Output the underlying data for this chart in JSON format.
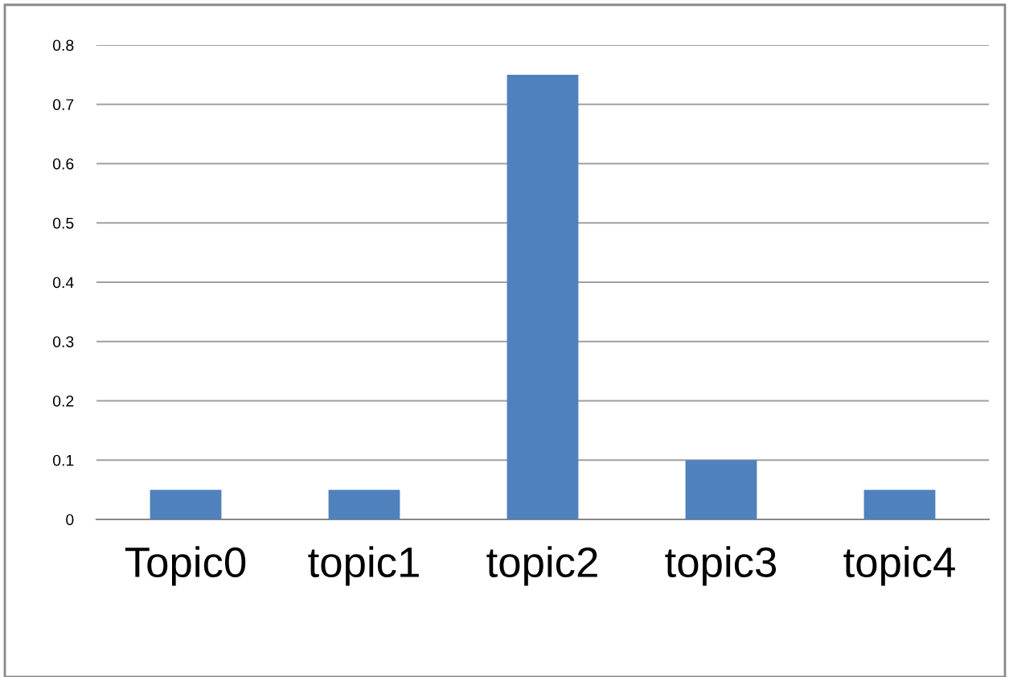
{
  "chart_data": {
    "type": "bar",
    "categories": [
      "Topic0",
      "topic1",
      "topic2",
      "topic3",
      "topic4"
    ],
    "values": [
      0.05,
      0.05,
      0.75,
      0.1,
      0.05
    ],
    "color": "#4f81bd",
    "ylim": [
      0,
      0.8
    ],
    "yticks": [
      0,
      0.1,
      0.2,
      0.3,
      0.4,
      0.5,
      0.6,
      0.7,
      0.8
    ],
    "grid": "y",
    "legend": false
  }
}
